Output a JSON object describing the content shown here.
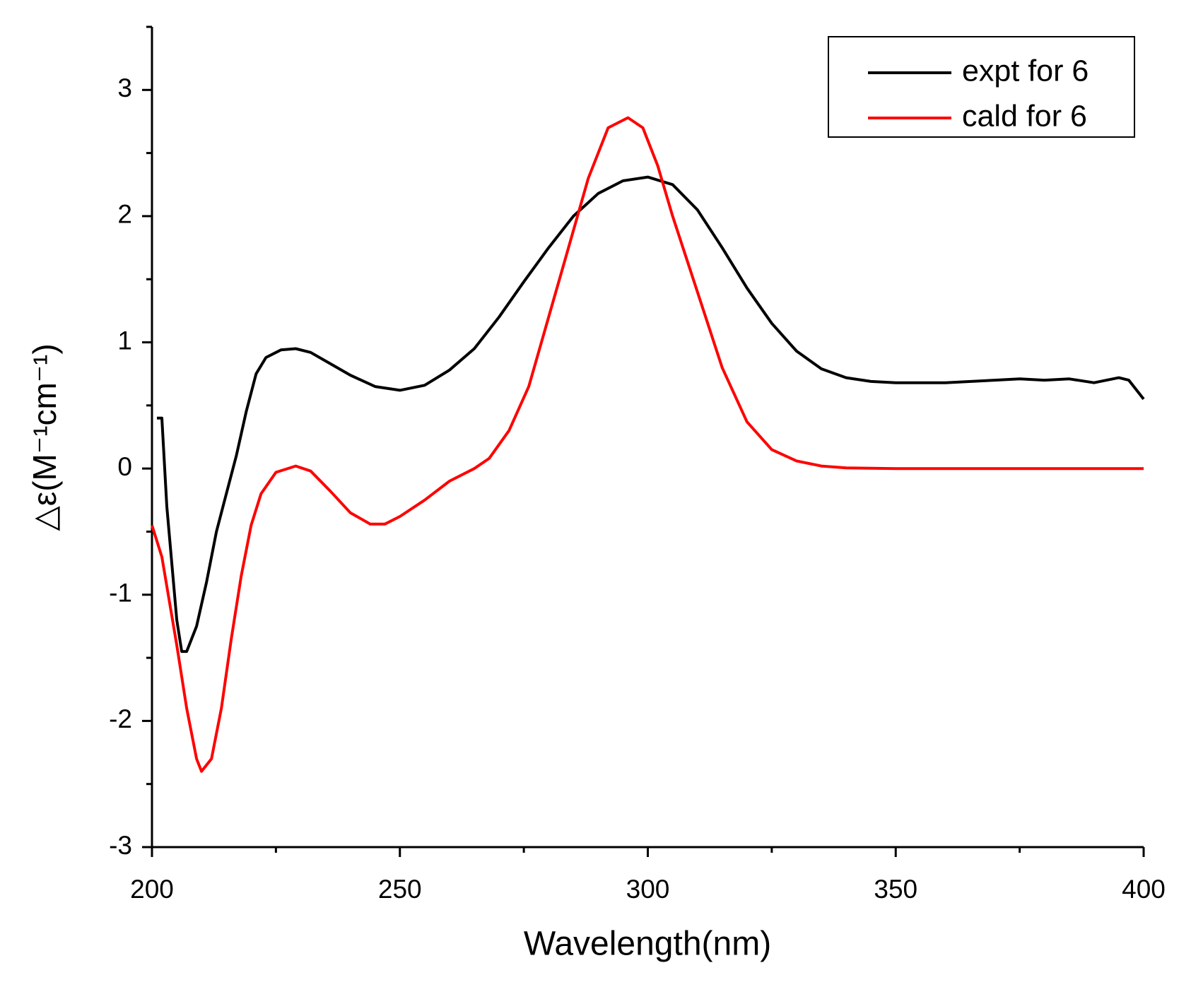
{
  "chart_data": {
    "type": "line",
    "x_label": "Wavelength(nm)",
    "y_label": "△ε(M⁻¹cm⁻¹)",
    "xlim": [
      200,
      400
    ],
    "ylim": [
      -3,
      3.5
    ],
    "xticks": [
      200,
      250,
      300,
      350,
      400
    ],
    "xminor": [
      225,
      275,
      325,
      375
    ],
    "yticks": [
      -3,
      -2,
      -1,
      0,
      1,
      2,
      3
    ],
    "yminor": [
      -2.5,
      -1.5,
      -0.5,
      0.5,
      1.5,
      2.5,
      3.5
    ],
    "legend": "upper right",
    "series": [
      {
        "name": "expt for 6",
        "color": "#000000",
        "x": [
          201,
          202,
          203,
          205,
          206,
          207,
          209,
          211,
          213,
          215,
          217,
          219,
          221,
          223,
          226,
          229,
          232,
          236,
          240,
          245,
          250,
          255,
          260,
          265,
          270,
          275,
          280,
          285,
          290,
          295,
          300,
          305,
          310,
          315,
          320,
          325,
          330,
          335,
          340,
          345,
          350,
          360,
          370,
          375,
          380,
          385,
          390,
          395,
          397,
          400
        ],
        "values": [
          0.4,
          0.4,
          -0.3,
          -1.2,
          -1.45,
          -1.45,
          -1.25,
          -0.9,
          -0.5,
          -0.2,
          0.1,
          0.45,
          0.75,
          0.88,
          0.94,
          0.95,
          0.92,
          0.83,
          0.74,
          0.65,
          0.62,
          0.66,
          0.78,
          0.95,
          1.2,
          1.48,
          1.75,
          2.0,
          2.18,
          2.28,
          2.31,
          2.25,
          2.05,
          1.75,
          1.43,
          1.15,
          0.93,
          0.79,
          0.72,
          0.69,
          0.68,
          0.68,
          0.7,
          0.71,
          0.7,
          0.71,
          0.68,
          0.72,
          0.7,
          0.55
        ]
      },
      {
        "name": "cald for 6",
        "color": "#ff0000",
        "x": [
          200,
          202,
          205,
          207,
          209,
          210,
          212,
          214,
          216,
          218,
          220,
          222,
          225,
          229,
          232,
          236,
          240,
          244,
          247,
          250,
          255,
          260,
          265,
          268,
          272,
          276,
          280,
          284,
          288,
          292,
          296,
          299,
          302,
          305,
          310,
          315,
          320,
          325,
          330,
          335,
          340,
          350,
          400
        ],
        "values": [
          -0.45,
          -0.7,
          -1.4,
          -1.9,
          -2.3,
          -2.4,
          -2.3,
          -1.9,
          -1.35,
          -0.85,
          -0.45,
          -0.2,
          -0.03,
          0.02,
          -0.02,
          -0.18,
          -0.35,
          -0.44,
          -0.44,
          -0.38,
          -0.25,
          -0.1,
          0.0,
          0.08,
          0.3,
          0.65,
          1.2,
          1.75,
          2.3,
          2.7,
          2.78,
          2.7,
          2.4,
          2.0,
          1.4,
          0.8,
          0.37,
          0.15,
          0.06,
          0.02,
          0.005,
          0,
          0
        ]
      }
    ]
  }
}
